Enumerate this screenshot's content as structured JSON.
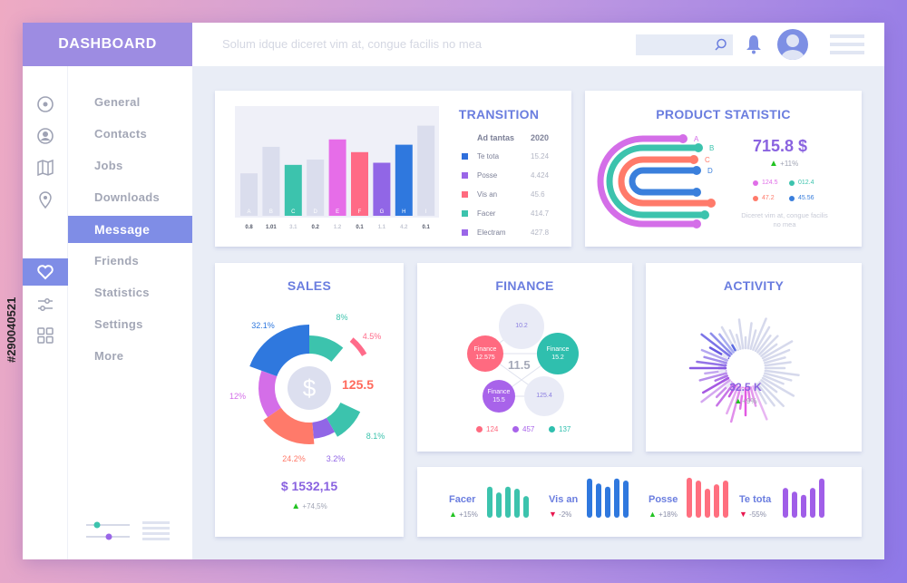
{
  "header": {
    "title": "DASHBOARD",
    "tagline": "Solum idque diceret vim at, congue facilis no mea",
    "search_placeholder": ""
  },
  "sidebar": {
    "icons": [
      "target-icon",
      "user-icon",
      "map-icon",
      "pin-icon",
      "heart-icon",
      "sliders-icon",
      "grid-icon"
    ],
    "items": [
      {
        "label": "General"
      },
      {
        "label": "Contacts"
      },
      {
        "label": "Jobs"
      },
      {
        "label": "Downloads"
      },
      {
        "label": "Message",
        "active": true
      },
      {
        "label": "Friends"
      },
      {
        "label": "Statistics"
      },
      {
        "label": "Settings"
      },
      {
        "label": "More"
      }
    ],
    "accent": "#7f8de6"
  },
  "transition": {
    "title": "TRANSITION",
    "table_header": [
      "Ad tantas",
      "2020"
    ],
    "rows": [
      {
        "label": "Te tota",
        "value": "15.24",
        "color": "#2f6fdc"
      },
      {
        "label": "Posse",
        "value": "4.424",
        "color": "#9a66e8"
      },
      {
        "label": "Vis an",
        "value": "45.6",
        "color": "#ff6b7f"
      },
      {
        "label": "Facer",
        "value": "414.7",
        "color": "#3cc3ad"
      },
      {
        "label": "Electram",
        "value": "427.8",
        "color": "#9a66e8"
      }
    ],
    "chart_data": {
      "type": "bar",
      "categories": [
        "A",
        "B",
        "C",
        "D",
        "E",
        "F",
        "G",
        "H",
        "I"
      ],
      "levels": [
        40,
        65,
        48,
        53,
        72,
        60,
        50,
        67,
        85
      ],
      "values": [
        "0.8",
        "1.01",
        "3.1",
        "0.2",
        "1.2",
        "0.1",
        "1.1",
        "4.2",
        "0.1"
      ],
      "colors": [
        "#dadded",
        "#dadded",
        "#3cc3ad",
        "#dadded",
        "#e66de8",
        "#ff6a86",
        "#9166e6",
        "#2f78de",
        "#dadded"
      ]
    }
  },
  "product": {
    "title": "PRODUCT STATISTIC",
    "amount": "715.8 $",
    "change": "+11%",
    "arcs": [
      {
        "label": "A",
        "color": "#d46ee8"
      },
      {
        "label": "B",
        "color": "#3cc3ad"
      },
      {
        "label": "C",
        "color": "#ff7a6a"
      },
      {
        "label": "D",
        "color": "#3a7fdc"
      }
    ],
    "legend": [
      {
        "value": "124.5",
        "color": "#e06ee8"
      },
      {
        "value": "012.4",
        "color": "#3cc3ad"
      },
      {
        "value": "47.2",
        "color": "#ff7a6a"
      },
      {
        "value": "45.56",
        "color": "#3a7fdc"
      }
    ],
    "note": "Diceret vim at, congue facilis no mea"
  },
  "sales": {
    "title": "SALES",
    "center_value": "125.5",
    "total": "$ 1532,15",
    "change": "+74,5%",
    "segments": [
      {
        "label": "8%",
        "value": 8,
        "color": "#3cc3ad"
      },
      {
        "label": "4.5%",
        "value": 4.5,
        "color": "#ff6b8a"
      },
      {
        "label": "8.1%",
        "value": 8.1,
        "color": "#3cc3ad"
      },
      {
        "label": "3.2%",
        "value": 3.2,
        "color": "#9166e6"
      },
      {
        "label": "24.2%",
        "value": 24.2,
        "color": "#ff7a6a"
      },
      {
        "label": "12%",
        "value": 12,
        "color": "#d46ee8"
      },
      {
        "label": "32.1%",
        "value": 32.1,
        "color": "#2f78de"
      }
    ]
  },
  "finance": {
    "title": "FINANCE",
    "center": "11.5",
    "bubbles": [
      {
        "name": "",
        "value": "10.2",
        "color": "#e9ebf6"
      },
      {
        "name": "Finance",
        "value": "12.575",
        "color": "#ff6a80"
      },
      {
        "name": "Finance",
        "value": "15.2",
        "color": "#2fbfae"
      },
      {
        "name": "Finance",
        "value": "15.5",
        "color": "#a863ea"
      },
      {
        "name": "",
        "value": "125.4",
        "color": "#e9ebf6"
      }
    ],
    "legend": [
      {
        "value": "124",
        "color": "#ff6a80"
      },
      {
        "value": "457",
        "color": "#a863ea"
      },
      {
        "value": "137",
        "color": "#2fbfae"
      }
    ]
  },
  "activity": {
    "title": "ACTIVITY",
    "value": "32.5 K",
    "change": "+9%"
  },
  "mini": [
    {
      "label": "Facer",
      "change": "+15%",
      "trend": "up",
      "color": "#3cc3ad",
      "levels": [
        76,
        62,
        76,
        71,
        53
      ]
    },
    {
      "label": "Vis an",
      "change": "-2%",
      "trend": "down",
      "color": "#2f78de",
      "levels": [
        96,
        84,
        76,
        96,
        91
      ]
    },
    {
      "label": "Posse",
      "change": "+18%",
      "trend": "up",
      "color": "#ff6f7f",
      "levels": [
        98,
        91,
        71,
        82,
        91
      ]
    },
    {
      "label": "Te tota",
      "change": "-55%",
      "trend": "down",
      "color": "#a05ee8",
      "levels": [
        73,
        64,
        56,
        73,
        96
      ]
    }
  ],
  "colors": {
    "title": "#6a7ddf",
    "up": "#22c322",
    "down": "#e8174f"
  },
  "watermark": "#290040521"
}
